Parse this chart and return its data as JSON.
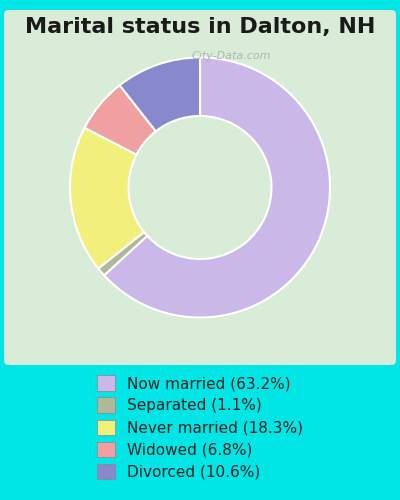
{
  "title": "Marital status in Dalton, NH",
  "slices": [
    63.2,
    1.1,
    18.3,
    6.8,
    10.6
  ],
  "labels": [
    "Now married (63.2%)",
    "Separated (1.1%)",
    "Never married (18.3%)",
    "Widowed (6.8%)",
    "Divorced (10.6%)"
  ],
  "colors": [
    "#c9b8e8",
    "#b0b89a",
    "#f0f07a",
    "#f0a0a0",
    "#8888cc"
  ],
  "bg_outer": "#00e5e5",
  "bg_inner": "#d8ecd8",
  "title_fontsize": 16,
  "legend_fontsize": 11,
  "watermark": "City-Data.com"
}
